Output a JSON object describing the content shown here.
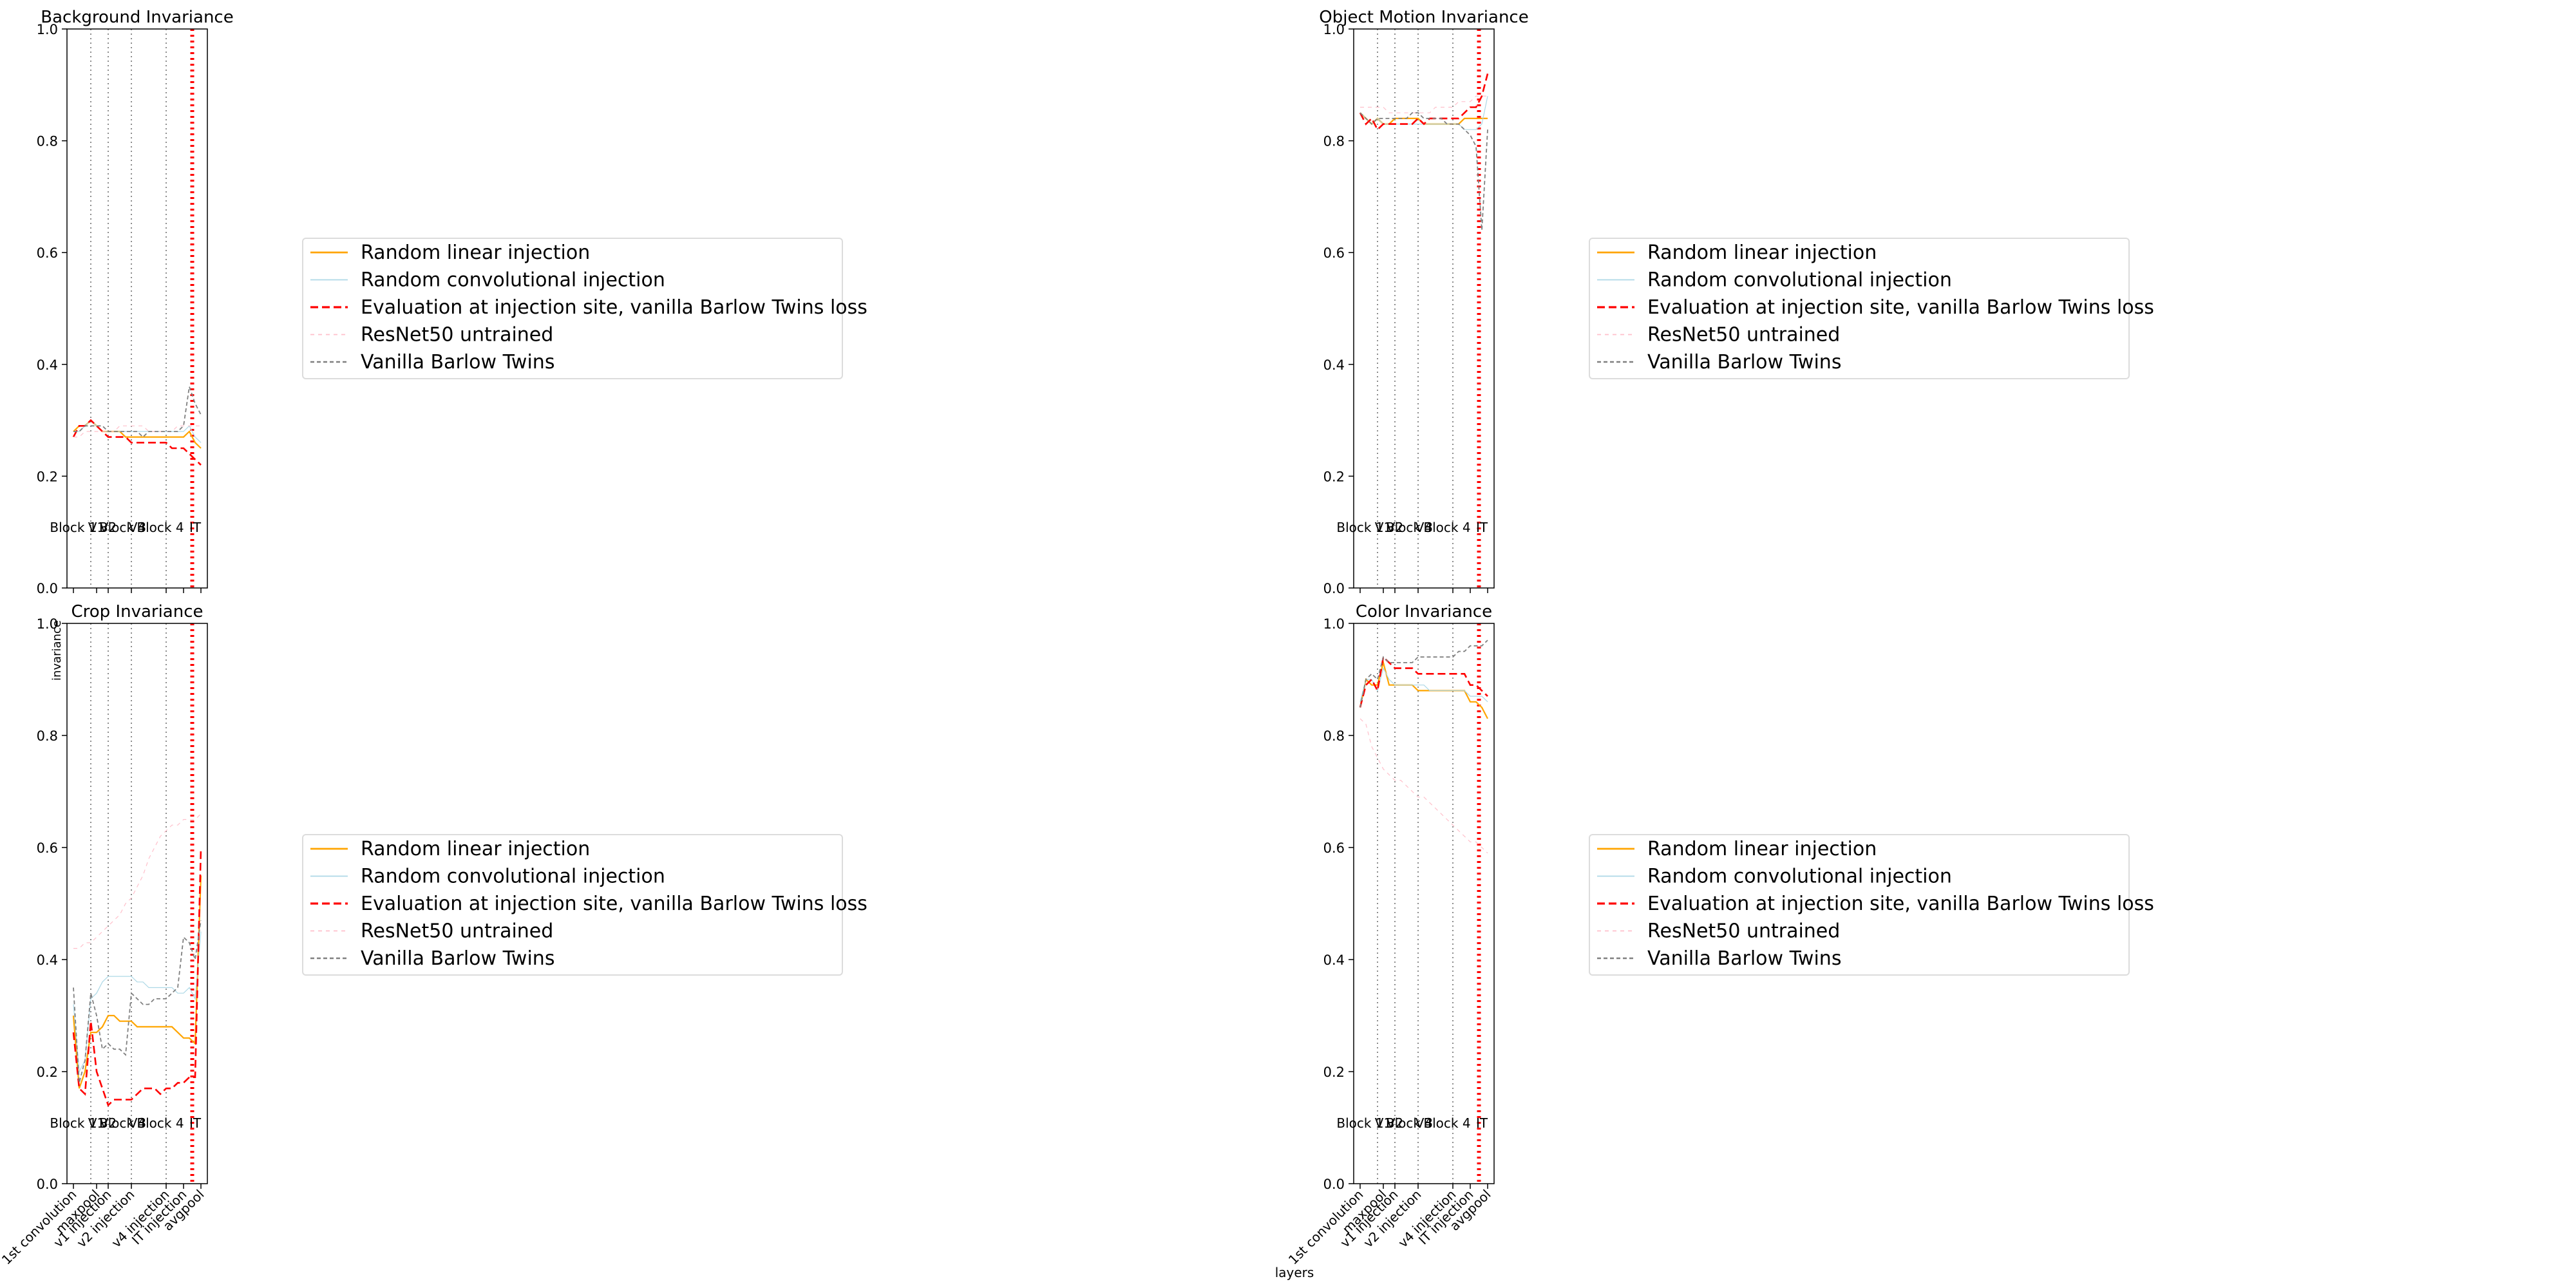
{
  "figure": {
    "xlabel": "layers",
    "ylabel": "invariance"
  },
  "chart_data": [
    {
      "type": "line",
      "title": "Background Invariance",
      "ylim": [
        0,
        1.0
      ],
      "yticks": [
        "0.0",
        "0.2",
        "0.4",
        "0.6",
        "0.8",
        "1.0"
      ],
      "stage_labels": [
        "Block 1",
        "V1",
        "V2",
        "Block 3",
        "V4",
        "Block 4",
        "IT"
      ],
      "show_xticklabels": false,
      "series": [
        {
          "name": "Random linear injection",
          "color": "#ffa500",
          "values": [
            0.28,
            0.29,
            0.29,
            0.3,
            0.29,
            0.28,
            0.28,
            0.28,
            0.28,
            0.27,
            0.27,
            0.27,
            0.27,
            0.27,
            0.27,
            0.27,
            0.27,
            0.27,
            0.27,
            0.27,
            0.28,
            0.26,
            0.25
          ]
        },
        {
          "name": "Random convolutional injection",
          "color": "#add8e6",
          "values": [
            0.28,
            0.28,
            0.29,
            0.3,
            0.29,
            0.28,
            0.28,
            0.28,
            0.28,
            0.28,
            0.28,
            0.28,
            0.28,
            0.28,
            0.28,
            0.28,
            0.28,
            0.28,
            0.28,
            0.28,
            0.29,
            0.27,
            0.26
          ]
        },
        {
          "name": "Evaluation at injection site, vanilla Barlow Twins loss",
          "color": "#ff0000",
          "values": [
            0.27,
            0.29,
            0.29,
            0.3,
            0.29,
            0.28,
            0.27,
            0.27,
            0.27,
            0.27,
            0.26,
            0.26,
            0.26,
            0.26,
            0.26,
            0.26,
            0.26,
            0.25,
            0.25,
            0.25,
            0.24,
            0.23,
            0.22
          ]
        },
        {
          "name": "ResNet50 untrained",
          "color": "#ffc0cb",
          "values": [
            0.27,
            0.27,
            0.28,
            0.28,
            0.28,
            0.28,
            0.28,
            0.28,
            0.29,
            0.29,
            0.29,
            0.29,
            0.29,
            0.28,
            0.28,
            0.28,
            0.28,
            0.28,
            0.29,
            0.29,
            0.29,
            0.29,
            0.29
          ]
        },
        {
          "name": "Vanilla Barlow Twins",
          "color": "#808080",
          "values": [
            0.28,
            0.28,
            0.29,
            0.29,
            0.29,
            0.29,
            0.28,
            0.28,
            0.28,
            0.28,
            0.28,
            0.28,
            0.27,
            0.28,
            0.28,
            0.28,
            0.28,
            0.28,
            0.28,
            0.29,
            0.36,
            0.33,
            0.31
          ]
        }
      ]
    },
    {
      "type": "line",
      "title": "Object Motion Invariance",
      "ylim": [
        0,
        1.0
      ],
      "yticks": [
        "0.0",
        "0.2",
        "0.4",
        "0.6",
        "0.8",
        "1.0"
      ],
      "stage_labels": [
        "Block 1",
        "V1",
        "V2",
        "Block 3",
        "V4",
        "Block 4",
        "IT"
      ],
      "show_xticklabels": false,
      "series": [
        {
          "name": "Random linear injection",
          "color": "#ffa500",
          "values": [
            0.85,
            0.84,
            0.83,
            0.84,
            0.83,
            0.83,
            0.84,
            0.84,
            0.84,
            0.84,
            0.84,
            0.83,
            0.83,
            0.83,
            0.83,
            0.83,
            0.83,
            0.83,
            0.84,
            0.84,
            0.84,
            0.84,
            0.84
          ]
        },
        {
          "name": "Random convolutional injection",
          "color": "#add8e6",
          "values": [
            0.85,
            0.84,
            0.83,
            0.84,
            0.83,
            0.83,
            0.83,
            0.83,
            0.83,
            0.83,
            0.83,
            0.83,
            0.83,
            0.83,
            0.83,
            0.83,
            0.83,
            0.83,
            0.82,
            0.82,
            0.82,
            0.83,
            0.88
          ]
        },
        {
          "name": "Evaluation at injection site, vanilla Barlow Twins loss",
          "color": "#ff0000",
          "values": [
            0.85,
            0.83,
            0.84,
            0.82,
            0.83,
            0.83,
            0.83,
            0.83,
            0.83,
            0.83,
            0.84,
            0.83,
            0.84,
            0.84,
            0.84,
            0.84,
            0.84,
            0.84,
            0.85,
            0.86,
            0.86,
            0.88,
            0.92
          ]
        },
        {
          "name": "ResNet50 untrained",
          "color": "#ffc0cb",
          "values": [
            0.86,
            0.86,
            0.86,
            0.86,
            0.86,
            0.85,
            0.85,
            0.85,
            0.85,
            0.85,
            0.85,
            0.85,
            0.85,
            0.86,
            0.86,
            0.86,
            0.86,
            0.87,
            0.87,
            0.87,
            0.88,
            0.88,
            0.88
          ]
        },
        {
          "name": "Vanilla Barlow Twins",
          "color": "#808080",
          "values": [
            0.85,
            0.84,
            0.83,
            0.84,
            0.84,
            0.84,
            0.84,
            0.84,
            0.84,
            0.85,
            0.85,
            0.84,
            0.84,
            0.84,
            0.84,
            0.83,
            0.83,
            0.83,
            0.82,
            0.81,
            0.79,
            0.64,
            0.82
          ]
        }
      ]
    },
    {
      "type": "line",
      "title": "Crop Invariance",
      "ylim": [
        0,
        1.0
      ],
      "yticks": [
        "0.0",
        "0.2",
        "0.4",
        "0.6",
        "0.8",
        "1.0"
      ],
      "stage_labels": [
        "Block 1",
        "V1",
        "V2",
        "Block 3",
        "V4",
        "Block 4",
        "IT"
      ],
      "show_xticklabels": true,
      "xticklabels": [
        "1st convolution",
        "maxpool",
        "v1 injection",
        "v2 injection",
        "v4 injection",
        "IT injection",
        "avgpool"
      ],
      "series": [
        {
          "name": "Random linear injection",
          "color": "#ffa500",
          "values": [
            0.3,
            0.17,
            0.2,
            0.27,
            0.27,
            0.28,
            0.3,
            0.3,
            0.29,
            0.29,
            0.29,
            0.28,
            0.28,
            0.28,
            0.28,
            0.28,
            0.28,
            0.28,
            0.27,
            0.26,
            0.26,
            0.25,
            0.55
          ]
        },
        {
          "name": "Random convolutional injection",
          "color": "#add8e6",
          "values": [
            0.32,
            0.2,
            0.22,
            0.33,
            0.34,
            0.36,
            0.37,
            0.37,
            0.37,
            0.37,
            0.37,
            0.36,
            0.36,
            0.35,
            0.35,
            0.35,
            0.35,
            0.35,
            0.34,
            0.34,
            0.35,
            0.33,
            0.45
          ]
        },
        {
          "name": "Evaluation at injection site, vanilla Barlow Twins loss",
          "color": "#ff0000",
          "values": [
            0.27,
            0.17,
            0.16,
            0.29,
            0.2,
            0.17,
            0.14,
            0.15,
            0.15,
            0.15,
            0.15,
            0.16,
            0.17,
            0.17,
            0.17,
            0.16,
            0.17,
            0.17,
            0.18,
            0.18,
            0.19,
            0.19,
            0.6
          ]
        },
        {
          "name": "ResNet50 untrained",
          "color": "#ffc0cb",
          "values": [
            0.42,
            0.42,
            0.43,
            0.43,
            0.44,
            0.45,
            0.46,
            0.47,
            0.48,
            0.5,
            0.51,
            0.53,
            0.55,
            0.58,
            0.6,
            0.62,
            0.63,
            0.64,
            0.64,
            0.65,
            0.65,
            0.65,
            0.66
          ]
        },
        {
          "name": "Vanilla Barlow Twins",
          "color": "#808080",
          "values": [
            0.35,
            0.18,
            0.22,
            0.34,
            0.3,
            0.24,
            0.25,
            0.24,
            0.24,
            0.23,
            0.34,
            0.33,
            0.32,
            0.32,
            0.33,
            0.33,
            0.33,
            0.34,
            0.35,
            0.44,
            0.43,
            0.4,
            0.47
          ]
        }
      ]
    },
    {
      "type": "line",
      "title": "Color Invariance",
      "ylim": [
        0,
        1.0
      ],
      "yticks": [
        "0.0",
        "0.2",
        "0.4",
        "0.6",
        "0.8",
        "1.0"
      ],
      "stage_labels": [
        "Block 1",
        "V1",
        "V2",
        "Block 3",
        "V4",
        "Block 4",
        "IT"
      ],
      "show_xticklabels": true,
      "xticklabels": [
        "1st convolution",
        "maxpool",
        "v1 injection",
        "v2 injection",
        "v4 injection",
        "IT injection",
        "avgpool"
      ],
      "series": [
        {
          "name": "Random linear injection",
          "color": "#ffa500",
          "values": [
            0.85,
            0.9,
            0.89,
            0.89,
            0.93,
            0.89,
            0.89,
            0.89,
            0.89,
            0.89,
            0.88,
            0.88,
            0.88,
            0.88,
            0.88,
            0.88,
            0.88,
            0.88,
            0.88,
            0.86,
            0.86,
            0.85,
            0.83
          ]
        },
        {
          "name": "Random convolutional injection",
          "color": "#add8e6",
          "values": [
            0.86,
            0.9,
            0.9,
            0.88,
            0.92,
            0.9,
            0.89,
            0.89,
            0.89,
            0.89,
            0.89,
            0.89,
            0.88,
            0.88,
            0.88,
            0.88,
            0.88,
            0.88,
            0.88,
            0.87,
            0.87,
            0.87,
            0.86
          ]
        },
        {
          "name": "Evaluation at injection site, vanilla Barlow Twins loss",
          "color": "#ff0000",
          "values": [
            0.85,
            0.89,
            0.9,
            0.88,
            0.94,
            0.93,
            0.92,
            0.92,
            0.92,
            0.92,
            0.91,
            0.91,
            0.91,
            0.91,
            0.91,
            0.91,
            0.91,
            0.91,
            0.91,
            0.89,
            0.89,
            0.88,
            0.87
          ]
        },
        {
          "name": "ResNet50 untrained",
          "color": "#ffc0cb",
          "values": [
            0.83,
            0.82,
            0.78,
            0.76,
            0.74,
            0.73,
            0.72,
            0.72,
            0.71,
            0.7,
            0.69,
            0.69,
            0.68,
            0.67,
            0.66,
            0.65,
            0.64,
            0.63,
            0.62,
            0.61,
            0.61,
            0.6,
            0.59
          ]
        },
        {
          "name": "Vanilla Barlow Twins",
          "color": "#808080",
          "values": [
            0.85,
            0.9,
            0.91,
            0.9,
            0.94,
            0.93,
            0.93,
            0.93,
            0.93,
            0.93,
            0.94,
            0.94,
            0.94,
            0.94,
            0.94,
            0.94,
            0.94,
            0.95,
            0.95,
            0.96,
            0.96,
            0.96,
            0.97
          ]
        }
      ]
    }
  ]
}
